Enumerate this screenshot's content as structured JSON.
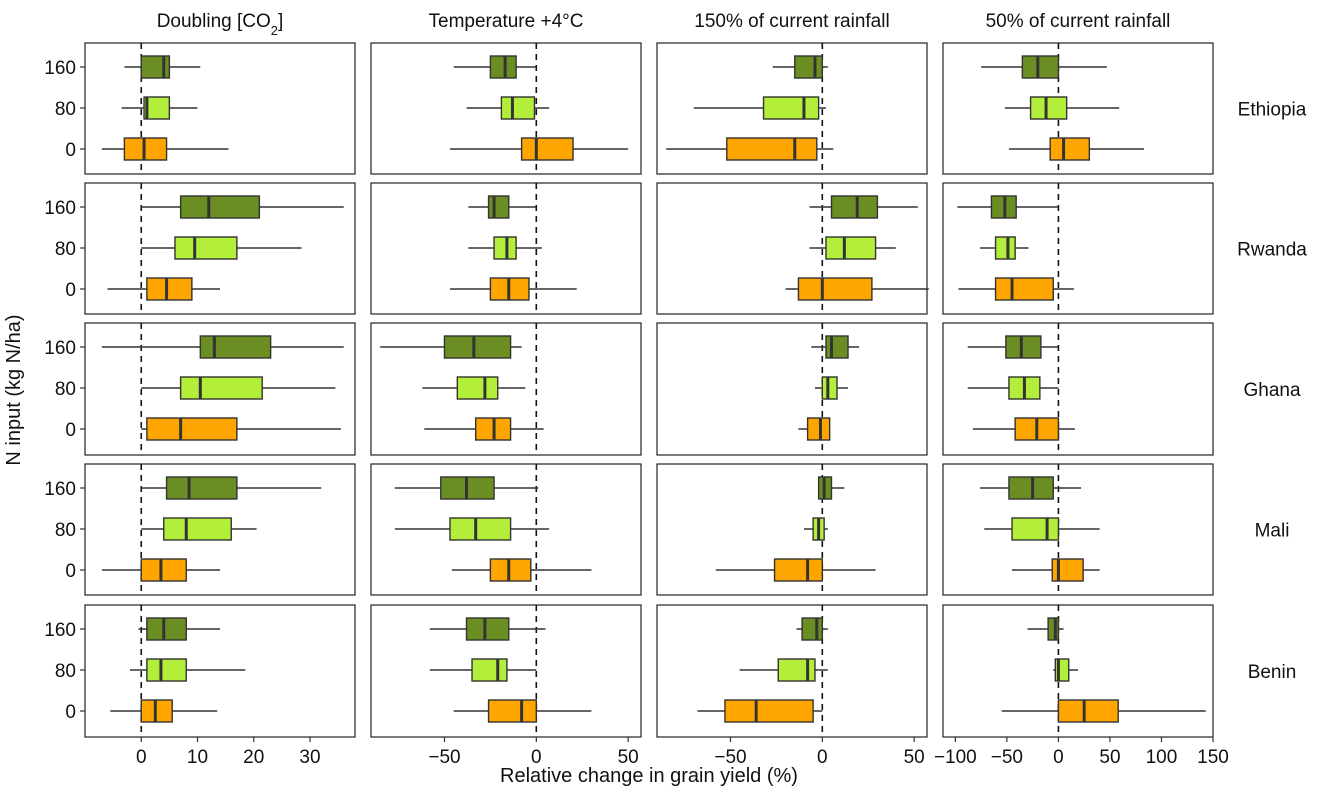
{
  "chart_data": {
    "type": "boxplot",
    "xlabel": "Relative change in grain yield (%)",
    "ylabel": "N input (kg N/ha)",
    "y_categories": [
      "160",
      "80",
      "0"
    ],
    "colors": {
      "160": "#6b8e23",
      "80": "#b3ef3a",
      "0": "#ffa500"
    },
    "columns": [
      {
        "title_main": "Doubling [CO",
        "title_sub": "2",
        "title_end": "]",
        "xlim": [
          -10,
          38
        ],
        "ticks": [
          0,
          10,
          20,
          30
        ]
      },
      {
        "title_main": "Temperature +4°C",
        "title_sub": "",
        "title_end": "",
        "xlim": [
          -90,
          57
        ],
        "ticks": [
          -50,
          0,
          50
        ]
      },
      {
        "title_main": "150% of current rainfall",
        "title_sub": "",
        "title_end": "",
        "xlim": [
          -90,
          57
        ],
        "ticks": [
          -50,
          0,
          50
        ]
      },
      {
        "title_main": "50% of current rainfall",
        "title_sub": "",
        "title_end": "",
        "xlim": [
          -112,
          150
        ],
        "ticks": [
          -100,
          -50,
          0,
          50,
          100,
          150
        ]
      }
    ],
    "rows": [
      {
        "label": "Ethiopia",
        "panels": [
          [
            [
              -3,
              0,
              4,
              5,
              10.5
            ],
            [
              -3.5,
              0.5,
              1,
              5,
              10
            ],
            [
              -7,
              -3,
              0.5,
              4.5,
              15.5
            ]
          ],
          [
            [
              -45,
              -25,
              -17,
              -11,
              0
            ],
            [
              -38,
              -19,
              -13,
              -1,
              7
            ],
            [
              -47,
              -8,
              0,
              20,
              50
            ]
          ],
          [
            [
              -27,
              -15,
              -4,
              0,
              3
            ],
            [
              -70,
              -32,
              -10,
              -2,
              2
            ],
            [
              -85,
              -52,
              -15,
              -3,
              6
            ]
          ],
          [
            [
              -75,
              -35,
              -20,
              0,
              47
            ],
            [
              -52,
              -27,
              -12,
              8,
              59
            ],
            [
              -48,
              -8,
              5,
              30,
              83
            ]
          ]
        ]
      },
      {
        "label": "Rwanda",
        "panels": [
          [
            [
              0,
              7,
              12,
              21,
              36
            ],
            [
              0,
              6,
              9.5,
              17,
              28.5
            ],
            [
              -6,
              1,
              4.5,
              9,
              14
            ]
          ],
          [
            [
              -37,
              -26,
              -23,
              -15,
              0
            ],
            [
              -37,
              -23,
              -16,
              -11,
              3
            ],
            [
              -47,
              -25,
              -15,
              -4,
              22
            ]
          ],
          [
            [
              -7,
              5,
              19,
              30,
              52
            ],
            [
              -7,
              2,
              12,
              29,
              40
            ],
            [
              -20,
              -13,
              0,
              27,
              58
            ]
          ],
          [
            [
              -98,
              -65,
              -52,
              -41,
              0
            ],
            [
              -76,
              -61,
              -49,
              -42,
              -29
            ],
            [
              -97,
              -61,
              -45,
              -5,
              15
            ]
          ]
        ]
      },
      {
        "label": "Ghana",
        "panels": [
          [
            [
              -7,
              10.5,
              13,
              23,
              36
            ],
            [
              0,
              7,
              10.5,
              21.5,
              34.5
            ],
            [
              0,
              1,
              7,
              17,
              35.5
            ]
          ],
          [
            [
              -85,
              -50,
              -34,
              -14,
              -8
            ],
            [
              -62,
              -43,
              -28,
              -21,
              -6
            ],
            [
              -61,
              -33,
              -23,
              -14,
              4
            ]
          ],
          [
            [
              -6,
              2,
              5,
              14,
              20
            ],
            [
              -4,
              0,
              3,
              8,
              14
            ],
            [
              -13,
              -8,
              -1,
              4,
              4
            ]
          ],
          [
            [
              -88,
              -51,
              -36,
              -17,
              0
            ],
            [
              -88,
              -48,
              -33,
              -18,
              0
            ],
            [
              -83,
              -42,
              -21,
              0,
              16
            ]
          ]
        ]
      },
      {
        "label": "Mali",
        "panels": [
          [
            [
              0,
              4.5,
              8.5,
              17,
              32
            ],
            [
              0,
              4,
              8,
              16,
              20.5
            ],
            [
              -7,
              0,
              3.5,
              8,
              14
            ]
          ],
          [
            [
              -77,
              -52,
              -38,
              -23,
              1
            ],
            [
              -77,
              -47,
              -33,
              -14,
              7
            ],
            [
              -46,
              -25,
              -15,
              -3,
              30
            ]
          ],
          [
            [
              -2,
              -2,
              1,
              5,
              12
            ],
            [
              -10,
              -5,
              -2,
              1,
              3
            ],
            [
              -58,
              -26,
              -8,
              0,
              29
            ]
          ],
          [
            [
              -76,
              -48,
              -25,
              -5,
              22
            ],
            [
              -72,
              -45,
              -11,
              0,
              40
            ],
            [
              -45,
              -6,
              0,
              24,
              40
            ]
          ]
        ]
      },
      {
        "label": "Benin",
        "panels": [
          [
            [
              -0.5,
              1,
              4,
              8,
              14
            ],
            [
              -2,
              1,
              3.5,
              8,
              18.5
            ],
            [
              -5.5,
              0,
              2.5,
              5.5,
              13.5
            ]
          ],
          [
            [
              -58,
              -38,
              -28,
              -15,
              5
            ],
            [
              -58,
              -35,
              -21,
              -16,
              0
            ],
            [
              -45,
              -26,
              -8,
              0,
              30
            ]
          ],
          [
            [
              -14,
              -11,
              -3,
              0,
              3
            ],
            [
              -45,
              -24,
              -8,
              -4,
              3
            ],
            [
              -68,
              -53,
              -36,
              -5,
              0
            ]
          ],
          [
            [
              -30,
              -10,
              -3,
              0,
              5
            ],
            [
              -5,
              -3,
              0,
              10,
              19
            ],
            [
              -55,
              0,
              25,
              58,
              143
            ]
          ]
        ]
      }
    ]
  }
}
